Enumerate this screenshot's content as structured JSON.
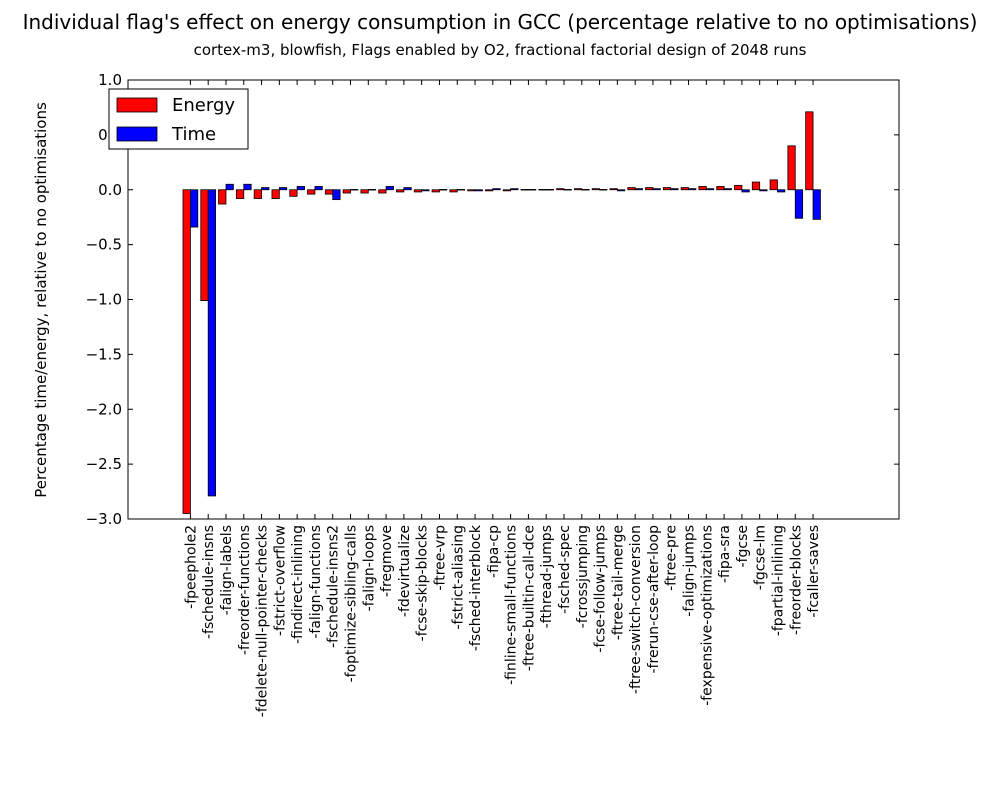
{
  "chart_data": {
    "type": "bar",
    "title": "Individual flag's effect on energy consumption in GCC (percentage relative to no optimisations)",
    "subtitle": "cortex-m3, blowfish, Flags enabled by O2, fractional factorial design of 2048 runs",
    "xlabel": "",
    "ylabel": "Percentage time/energy, relative to no optimisations",
    "ylim": [
      -3.0,
      1.0
    ],
    "yticks": [
      -3.0,
      -2.5,
      -2.0,
      -1.5,
      -1.0,
      -0.5,
      0.0,
      0.5,
      1.0
    ],
    "ytick_labels": [
      "−3.0",
      "−2.5",
      "−2.0",
      "−1.5",
      "−1.0",
      "−0.5",
      "0.0",
      "0.5",
      "1.0"
    ],
    "legend_position": "top-left",
    "grid": false,
    "categories": [
      "-fpeephole2",
      "-fschedule-insns",
      "-falign-labels",
      "-freorder-functions",
      "-fdelete-null-pointer-checks",
      "-fstrict-overflow",
      "-findirect-inlining",
      "-falign-functions",
      "-fschedule-insns2",
      "-foptimize-sibling-calls",
      "-falign-loops",
      "-fregmove",
      "-fdevirtualize",
      "-fcse-skip-blocks",
      "-ftree-vrp",
      "-fstrict-aliasing",
      "-fsched-interblock",
      "-fipa-cp",
      "-finline-small-functions",
      "-ftree-builtin-call-dce",
      "-fthread-jumps",
      "-fsched-spec",
      "-fcrossjumping",
      "-fcse-follow-jumps",
      "-ftree-tail-merge",
      "-ftree-switch-conversion",
      "-frerun-cse-after-loop",
      "-ftree-pre",
      "-falign-jumps",
      "-fexpensive-optimizations",
      "-fipa-sra",
      "-fgcse",
      "-fgcse-lm",
      "-fpartial-inlining",
      "-freorder-blocks",
      "-fcaller-saves"
    ],
    "series": [
      {
        "name": "Energy",
        "color": "#ff0000",
        "values": [
          -2.95,
          -1.01,
          -0.13,
          -0.08,
          -0.08,
          -0.08,
          -0.06,
          -0.04,
          -0.04,
          -0.03,
          -0.03,
          -0.03,
          -0.02,
          -0.02,
          -0.02,
          -0.02,
          -0.01,
          -0.01,
          -0.01,
          -0.005,
          -0.005,
          0.01,
          0.01,
          0.01,
          0.01,
          0.02,
          0.02,
          0.02,
          0.02,
          0.03,
          0.03,
          0.04,
          0.07,
          0.09,
          0.4,
          0.71
        ]
      },
      {
        "name": "Time",
        "color": "#0000ff",
        "values": [
          -0.34,
          -2.79,
          0.05,
          0.05,
          0.02,
          0.02,
          0.03,
          0.03,
          -0.09,
          0.0,
          0.0,
          0.03,
          0.02,
          -0.01,
          0.0,
          0.0,
          -0.01,
          0.01,
          0.01,
          0.0,
          0.0,
          0.0,
          0.0,
          0.0,
          -0.01,
          0.01,
          0.01,
          0.01,
          0.01,
          0.01,
          0.01,
          -0.02,
          -0.01,
          -0.02,
          -0.26,
          -0.27
        ]
      }
    ]
  }
}
